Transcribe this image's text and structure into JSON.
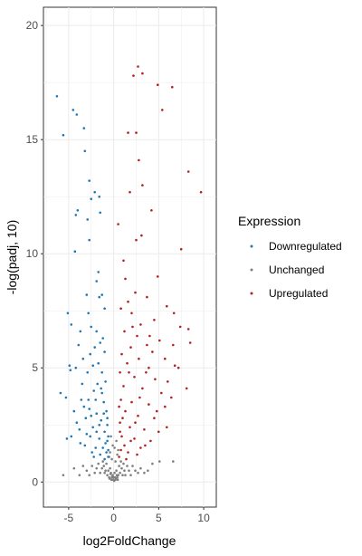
{
  "chart_data": {
    "type": "scatter",
    "title": "",
    "xlabel": "log2FoldChange",
    "ylabel": "-log(padj, 10)",
    "xlim": [
      -7.8,
      11.4
    ],
    "ylim": [
      -1.1,
      20.8
    ],
    "x_ticks": [
      -5,
      0,
      5,
      10
    ],
    "y_ticks": [
      0,
      5,
      10,
      15,
      20
    ],
    "grid": true,
    "legend": {
      "title": "Expression",
      "placement": "right",
      "items": [
        "Downregulated",
        "Unchanged",
        "Upregulated"
      ]
    },
    "colors": {
      "Downregulated": "#1f77b4",
      "Unchanged": "#808080",
      "Upregulated": "#b22222"
    },
    "series": [
      {
        "name": "Downregulated",
        "points": [
          [
            -6.3,
            16.9
          ],
          [
            -4.5,
            16.3
          ],
          [
            -4.1,
            16.1
          ],
          [
            -3.3,
            15.5
          ],
          [
            -5.6,
            15.2
          ],
          [
            -3.2,
            14.5
          ],
          [
            -2.7,
            13.2
          ],
          [
            -2.1,
            12.7
          ],
          [
            -1.6,
            12.5
          ],
          [
            -2.5,
            12.4
          ],
          [
            -1.5,
            11.8
          ],
          [
            -4.0,
            11.9
          ],
          [
            -4.2,
            11.7
          ],
          [
            -2.9,
            11.5
          ],
          [
            -2.7,
            10.6
          ],
          [
            -4.3,
            10.1
          ],
          [
            -1.7,
            9.2
          ],
          [
            -1.9,
            8.8
          ],
          [
            -3.0,
            8.2
          ],
          [
            -1.3,
            8.2
          ],
          [
            -1.6,
            8.1
          ],
          [
            -1.0,
            7.6
          ],
          [
            -2.8,
            7.4
          ],
          [
            -5.1,
            7.4
          ],
          [
            -4.7,
            6.9
          ],
          [
            -2.5,
            6.8
          ],
          [
            -3.7,
            6.6
          ],
          [
            -1.9,
            6.6
          ],
          [
            -1.2,
            6.3
          ],
          [
            -1.5,
            6.1
          ],
          [
            -3.9,
            6.0
          ],
          [
            -2.1,
            5.9
          ],
          [
            -1.0,
            5.7
          ],
          [
            -2.6,
            5.6
          ],
          [
            -3.4,
            5.4
          ],
          [
            -1.7,
            5.2
          ],
          [
            -4.9,
            5.1
          ],
          [
            -4.2,
            5.0
          ],
          [
            -2.9,
            4.8
          ],
          [
            -1.3,
            4.8
          ],
          [
            -5.9,
            3.9
          ],
          [
            -2.2,
            4.0
          ],
          [
            -3.6,
            3.6
          ],
          [
            -1.1,
            3.5
          ],
          [
            -0.8,
            3.1
          ],
          [
            -1.9,
            3.0
          ],
          [
            -2.7,
            3.2
          ],
          [
            -4.4,
            3.1
          ],
          [
            -5.3,
            3.7
          ],
          [
            -3.1,
            2.8
          ],
          [
            -1.4,
            2.7
          ],
          [
            -0.7,
            2.5
          ],
          [
            -2.3,
            2.4
          ],
          [
            -3.8,
            2.3
          ],
          [
            -1.0,
            2.2
          ],
          [
            -0.6,
            2.0
          ],
          [
            -1.6,
            1.9
          ],
          [
            -2.6,
            2.0
          ],
          [
            -4.7,
            2.0
          ],
          [
            -0.9,
            1.7
          ],
          [
            -1.2,
            1.5
          ],
          [
            -0.6,
            1.4
          ],
          [
            -2.0,
            1.5
          ],
          [
            -3.2,
            1.6
          ],
          [
            -0.8,
            1.3
          ],
          [
            -1.5,
            1.2
          ],
          [
            -0.6,
            1.1
          ],
          [
            -2.4,
            1.3
          ],
          [
            -1.0,
            1.0
          ],
          [
            -4.1,
            2.6
          ],
          [
            -3.5,
            4.3
          ],
          [
            -2.0,
            3.6
          ],
          [
            -1.3,
            3.9
          ],
          [
            -0.9,
            4.4
          ],
          [
            -2.3,
            5.1
          ],
          [
            -1.6,
            2.5
          ],
          [
            -0.7,
            2.8
          ],
          [
            -3.0,
            2.1
          ],
          [
            -2.8,
            3.6
          ],
          [
            -1.8,
            4.3
          ],
          [
            -5.2,
            1.9
          ],
          [
            -4.8,
            4.9
          ],
          [
            -3.7,
            1.7
          ],
          [
            -2.5,
            2.9
          ],
          [
            -1.1,
            3.0
          ],
          [
            -0.7,
            1.8
          ],
          [
            -1.9,
            2.2
          ],
          [
            -3.3,
            3.3
          ],
          [
            -2.2,
            1.1
          ],
          [
            -1.4,
            4.1
          ]
        ]
      },
      {
        "name": "Unchanged",
        "points": [
          [
            0.0,
            0.2
          ],
          [
            0.1,
            0.4
          ],
          [
            -0.1,
            0.3
          ],
          [
            0.2,
            0.1
          ],
          [
            -0.2,
            0.2
          ],
          [
            0.3,
            0.5
          ],
          [
            -0.3,
            0.4
          ],
          [
            0.4,
            0.2
          ],
          [
            -0.4,
            0.6
          ],
          [
            0.5,
            0.3
          ],
          [
            -0.5,
            0.2
          ],
          [
            0.6,
            0.7
          ],
          [
            -0.6,
            0.5
          ],
          [
            0.7,
            0.4
          ],
          [
            -0.7,
            0.3
          ],
          [
            0.8,
            0.9
          ],
          [
            -0.8,
            0.8
          ],
          [
            0.9,
            0.6
          ],
          [
            -0.9,
            0.5
          ],
          [
            1.0,
            0.3
          ],
          [
            -1.0,
            0.4
          ],
          [
            1.1,
            0.8
          ],
          [
            -1.1,
            0.7
          ],
          [
            1.2,
            0.5
          ],
          [
            -1.2,
            0.9
          ],
          [
            1.3,
            0.3
          ],
          [
            -1.3,
            0.6
          ],
          [
            1.5,
            0.7
          ],
          [
            -1.5,
            0.4
          ],
          [
            1.7,
            0.5
          ],
          [
            -1.7,
            0.8
          ],
          [
            1.9,
            0.3
          ],
          [
            -1.9,
            0.6
          ],
          [
            2.1,
            0.7
          ],
          [
            -2.1,
            0.4
          ],
          [
            2.4,
            0.5
          ],
          [
            -2.4,
            0.7
          ],
          [
            2.7,
            0.4
          ],
          [
            -2.7,
            0.3
          ],
          [
            3.0,
            0.6
          ],
          [
            -3.0,
            0.5
          ],
          [
            3.4,
            0.4
          ],
          [
            -3.4,
            0.7
          ],
          [
            3.8,
            0.5
          ],
          [
            -3.8,
            0.3
          ],
          [
            4.3,
            0.8
          ],
          [
            -4.4,
            0.6
          ],
          [
            5.1,
            0.9
          ],
          [
            -5.6,
            0.3
          ],
          [
            6.6,
            0.9
          ],
          [
            0.2,
            0.9
          ],
          [
            -0.2,
            1.0
          ],
          [
            0.4,
            1.2
          ],
          [
            -0.4,
            1.3
          ],
          [
            0.1,
            1.5
          ],
          [
            -0.1,
            1.6
          ],
          [
            0.3,
            1.8
          ],
          [
            -0.3,
            2.0
          ],
          [
            0.5,
            1.4
          ],
          [
            -0.5,
            1.1
          ],
          [
            0.05,
            0.05
          ],
          [
            -0.05,
            0.1
          ],
          [
            0.15,
            0.2
          ],
          [
            -0.15,
            0.25
          ],
          [
            0.25,
            0.15
          ],
          [
            -0.25,
            0.1
          ],
          [
            0.35,
            0.3
          ],
          [
            -0.35,
            0.35
          ],
          [
            0.45,
            0.1
          ],
          [
            -0.45,
            0.15
          ]
        ]
      },
      {
        "name": "Upregulated",
        "points": [
          [
            2.7,
            18.2
          ],
          [
            2.2,
            17.8
          ],
          [
            3.2,
            17.9
          ],
          [
            4.9,
            17.4
          ],
          [
            6.5,
            17.3
          ],
          [
            5.4,
            16.3
          ],
          [
            1.6,
            15.3
          ],
          [
            2.5,
            15.3
          ],
          [
            2.8,
            14.1
          ],
          [
            8.3,
            13.6
          ],
          [
            3.2,
            13.0
          ],
          [
            1.8,
            12.7
          ],
          [
            9.7,
            12.7
          ],
          [
            4.2,
            11.9
          ],
          [
            0.5,
            11.3
          ],
          [
            3.1,
            10.8
          ],
          [
            2.5,
            10.6
          ],
          [
            7.5,
            10.2
          ],
          [
            1.1,
            9.7
          ],
          [
            4.9,
            9.0
          ],
          [
            1.3,
            8.9
          ],
          [
            2.4,
            8.3
          ],
          [
            3.7,
            8.1
          ],
          [
            1.6,
            7.9
          ],
          [
            5.9,
            7.7
          ],
          [
            2.0,
            7.4
          ],
          [
            6.7,
            7.4
          ],
          [
            0.8,
            7.6
          ],
          [
            4.5,
            7.1
          ],
          [
            3.0,
            6.9
          ],
          [
            7.4,
            6.8
          ],
          [
            1.2,
            6.6
          ],
          [
            8.3,
            6.7
          ],
          [
            2.6,
            6.4
          ],
          [
            5.1,
            6.2
          ],
          [
            3.7,
            6.0
          ],
          [
            1.9,
            5.9
          ],
          [
            6.6,
            6.0
          ],
          [
            8.5,
            6.1
          ],
          [
            4.3,
            5.7
          ],
          [
            0.9,
            5.6
          ],
          [
            2.8,
            5.4
          ],
          [
            5.7,
            5.4
          ],
          [
            1.5,
            5.2
          ],
          [
            3.9,
            5.0
          ],
          [
            7.2,
            5.0
          ],
          [
            0.7,
            4.8
          ],
          [
            2.3,
            4.6
          ],
          [
            4.6,
            4.5
          ],
          [
            6.0,
            4.4
          ],
          [
            8.1,
            4.1
          ],
          [
            1.1,
            4.2
          ],
          [
            3.2,
            4.1
          ],
          [
            5.3,
            3.9
          ],
          [
            0.8,
            3.6
          ],
          [
            2.0,
            3.5
          ],
          [
            3.9,
            3.4
          ],
          [
            5.7,
            3.3
          ],
          [
            1.3,
            3.1
          ],
          [
            2.7,
            2.9
          ],
          [
            4.5,
            2.8
          ],
          [
            0.7,
            2.6
          ],
          [
            1.8,
            2.4
          ],
          [
            3.4,
            2.3
          ],
          [
            5.0,
            2.2
          ],
          [
            0.9,
            2.0
          ],
          [
            2.3,
            1.9
          ],
          [
            4.1,
            1.8
          ],
          [
            1.2,
            1.6
          ],
          [
            3.0,
            1.5
          ],
          [
            0.8,
            1.4
          ],
          [
            1.6,
            1.3
          ],
          [
            2.6,
            1.2
          ],
          [
            0.6,
            1.1
          ],
          [
            1.4,
            1.0
          ],
          [
            6.4,
            3.7
          ],
          [
            5.9,
            2.4
          ],
          [
            4.8,
            3.1
          ],
          [
            3.6,
            4.8
          ],
          [
            2.1,
            6.8
          ],
          [
            1.7,
            4.8
          ],
          [
            0.6,
            3.3
          ],
          [
            2.9,
            3.7
          ],
          [
            4.0,
            6.4
          ],
          [
            6.8,
            5.1
          ],
          [
            1.0,
            2.8
          ],
          [
            2.4,
            2.6
          ],
          [
            3.5,
            1.6
          ],
          [
            1.9,
            1.8
          ],
          [
            0.7,
            2.2
          ]
        ]
      }
    ]
  }
}
